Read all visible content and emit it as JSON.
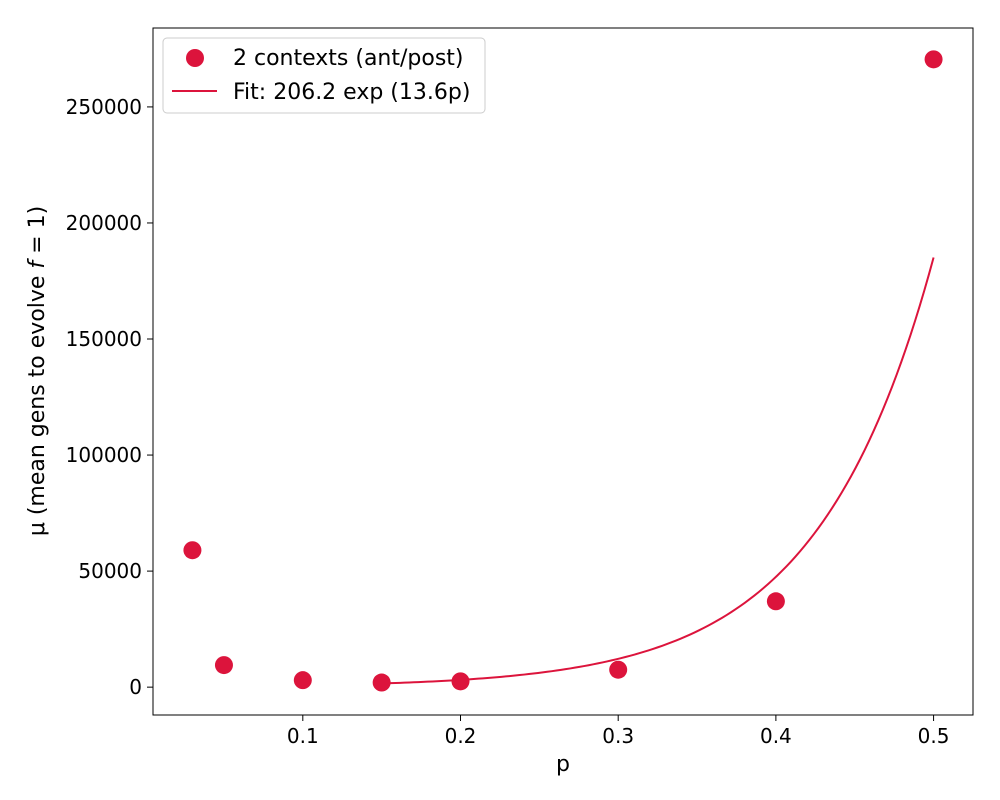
{
  "chart_data": {
    "type": "scatter",
    "xlabel": "p",
    "ylabel_prefix": "μ (mean gens to evolve ",
    "ylabel_var": "f",
    "ylabel_suffix": " = 1)",
    "xlim": [
      0.005,
      0.525
    ],
    "ylim": [
      -12000,
      284000
    ],
    "x_ticks": [
      0.1,
      0.2,
      0.3,
      0.4,
      0.5
    ],
    "x_tick_labels": [
      "0.1",
      "0.2",
      "0.3",
      "0.4",
      "0.5"
    ],
    "y_ticks": [
      0,
      50000,
      100000,
      150000,
      200000,
      250000
    ],
    "y_tick_labels": [
      "0",
      "50000",
      "100000",
      "150000",
      "200000",
      "250000"
    ],
    "grid": false,
    "legend_position": "top-left",
    "color": "#dc143c",
    "series": [
      {
        "name": "2 contexts (ant/post)",
        "kind": "scatter",
        "x": [
          0.03,
          0.05,
          0.1,
          0.15,
          0.2,
          0.3,
          0.4,
          0.5
        ],
        "y": [
          59000,
          9500,
          3000,
          2000,
          2500,
          7500,
          37000,
          270500
        ]
      },
      {
        "name": "Fit: 206.2 exp (13.6p)",
        "kind": "line",
        "fit": {
          "a": 206.2,
          "b": 13.6,
          "x_range": [
            0.15,
            0.5
          ]
        }
      }
    ]
  }
}
